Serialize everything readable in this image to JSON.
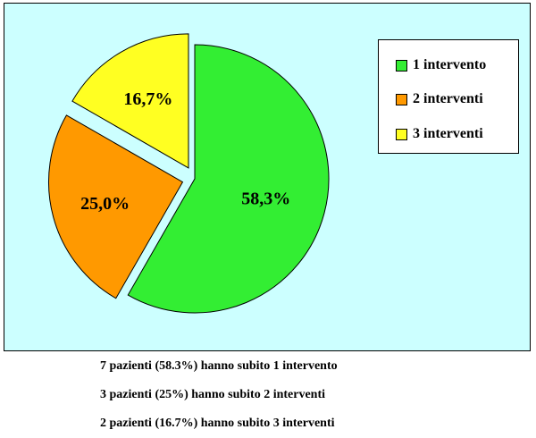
{
  "chart_data": {
    "type": "pie",
    "title": "",
    "slices": [
      {
        "name": "1 intervento",
        "value": 58.3,
        "label": "58,3%",
        "color": "#33ee33",
        "exploded": false
      },
      {
        "name": "2 interventi",
        "value": 25.0,
        "label": "25,0%",
        "color": "#ff9900",
        "exploded": true
      },
      {
        "name": "3 interventi",
        "value": 16.7,
        "label": "16,7%",
        "color": "#ffff22",
        "exploded": true
      }
    ],
    "legend_placement": "top-right",
    "background_color": "#ccffff"
  },
  "legend": {
    "items": [
      {
        "label": "1 intervento",
        "color": "#33ee33"
      },
      {
        "label": "2 interventi",
        "color": "#ff9900"
      },
      {
        "label": "3 interventi",
        "color": "#ffff22"
      }
    ]
  },
  "notes": [
    "7  pazienti (58.3%) hanno subito 1 intervento",
    "3  pazienti (25%) hanno subito 2 interventi",
    "2  pazienti (16.7%) hanno subito 3 interventi"
  ]
}
